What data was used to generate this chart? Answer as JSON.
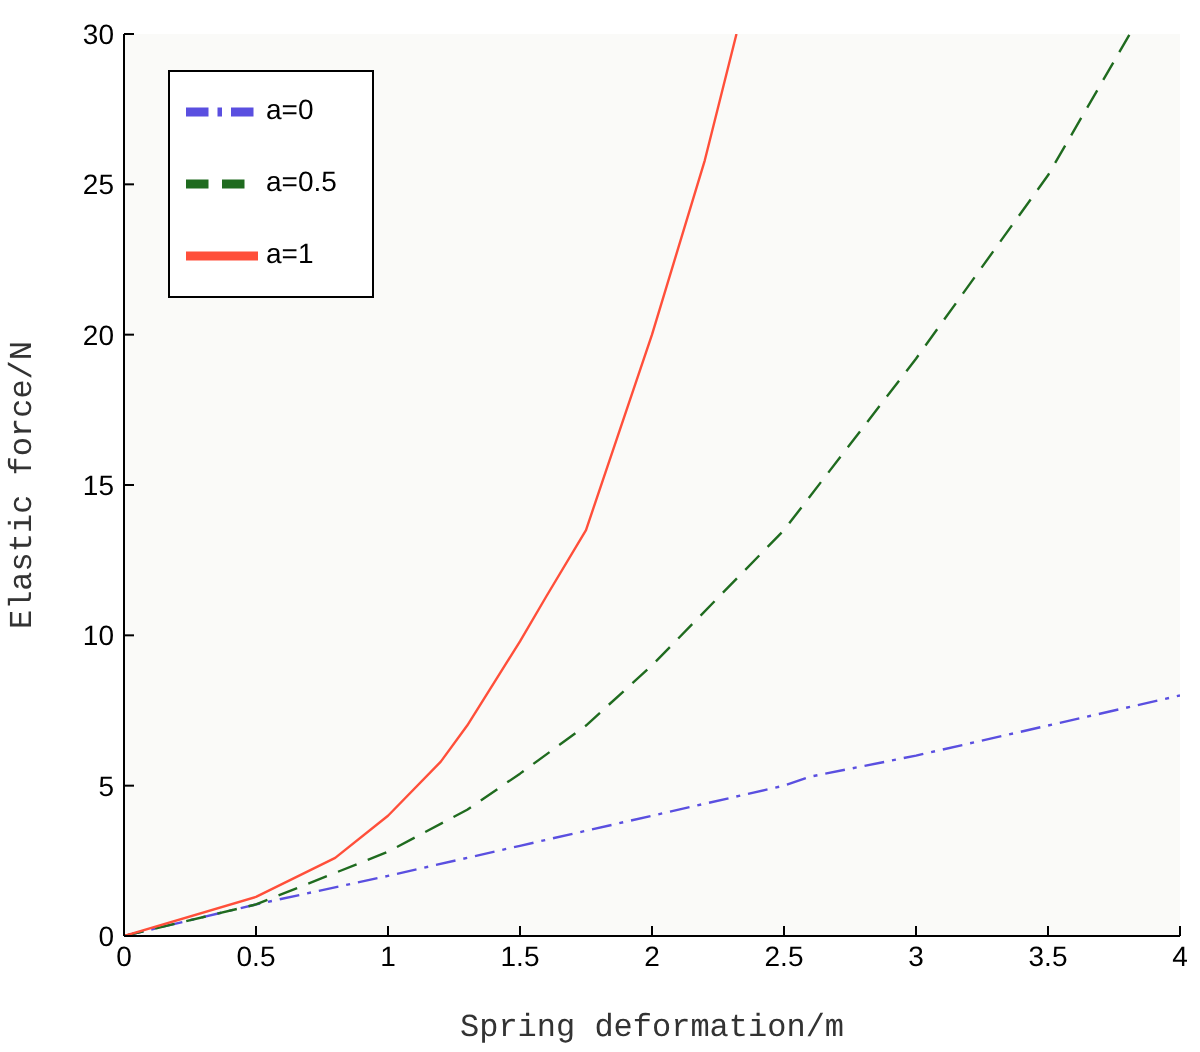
{
  "chart_data": {
    "type": "line",
    "xlabel": "Spring deformation/m",
    "ylabel": "Elastic force/N",
    "xlim": [
      0,
      4
    ],
    "xticks": [
      0,
      0.5,
      1,
      1.5,
      2,
      2.5,
      3,
      3.5,
      4
    ],
    "ylim": [
      0,
      30
    ],
    "yticks": [
      0,
      5,
      10,
      15,
      20,
      25,
      30
    ],
    "grid": false,
    "legend": "top left",
    "marker": "none",
    "series": [
      {
        "name": "a=0",
        "color": "#5a4fe0",
        "line_style": "dashdot",
        "x": [
          0,
          0.5,
          1,
          1.5,
          1.7,
          2,
          2.5,
          2.6,
          3,
          3.5,
          4
        ],
        "values": [
          0,
          1.05,
          2,
          3,
          3.4,
          4,
          5,
          5.3,
          6,
          7,
          8
        ]
      },
      {
        "name": "a=0.5",
        "color": "#1f6b1f",
        "line_style": "dashed",
        "x": [
          0,
          0.5,
          1,
          1.3,
          1.5,
          1.75,
          2,
          2.5,
          3,
          3.5,
          3.81
        ],
        "values": [
          0,
          1.05,
          2.8,
          4.2,
          5.4,
          7,
          9,
          13.5,
          19.2,
          25.3,
          30
        ]
      },
      {
        "name": "a=1",
        "color": "#ff4f3a",
        "line_style": "solid",
        "x": [
          0,
          0.5,
          0.8,
          1,
          1.2,
          1.3,
          1.5,
          1.6,
          1.75,
          2,
          2.2,
          2.32
        ],
        "values": [
          0,
          1.3,
          2.6,
          4,
          5.8,
          7,
          9.8,
          11.3,
          13.5,
          20,
          25.8,
          30
        ]
      }
    ]
  }
}
